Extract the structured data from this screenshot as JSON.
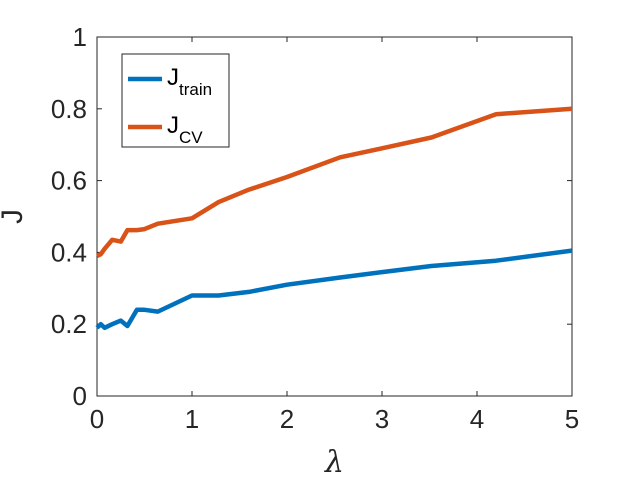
{
  "chart_data": {
    "type": "line",
    "title": "",
    "xlabel": "λ",
    "ylabel": "J",
    "xlim": [
      0,
      5
    ],
    "ylim": [
      0,
      1
    ],
    "xticks": [
      "0",
      "1",
      "2",
      "3",
      "4",
      "5"
    ],
    "yticks": [
      "0",
      "0.2",
      "0.4",
      "0.6",
      "0.8",
      "1"
    ],
    "grid": false,
    "legend_position": "top-left",
    "series": [
      {
        "name": "J_train",
        "label_main": "J",
        "label_sub": "train",
        "color": "#0072BD",
        "x": [
          0,
          0.04,
          0.08,
          0.16,
          0.25,
          0.32,
          0.42,
          0.5,
          0.64,
          1.0,
          1.28,
          1.6,
          2.0,
          2.56,
          3.0,
          3.52,
          4.2,
          5.0
        ],
        "y": [
          0.19,
          0.2,
          0.19,
          0.2,
          0.21,
          0.195,
          0.24,
          0.24,
          0.235,
          0.28,
          0.28,
          0.29,
          0.31,
          0.33,
          0.345,
          0.362,
          0.377,
          0.405
        ]
      },
      {
        "name": "J_CV",
        "label_main": "J",
        "label_sub": "CV",
        "color": "#D95319",
        "x": [
          0,
          0.04,
          0.08,
          0.16,
          0.25,
          0.32,
          0.42,
          0.5,
          0.64,
          1.0,
          1.28,
          1.6,
          2.0,
          2.56,
          3.0,
          3.52,
          4.2,
          5.0
        ],
        "y": [
          0.39,
          0.395,
          0.41,
          0.435,
          0.43,
          0.462,
          0.462,
          0.465,
          0.48,
          0.495,
          0.54,
          0.575,
          0.61,
          0.665,
          0.69,
          0.72,
          0.785,
          0.8
        ]
      }
    ]
  }
}
